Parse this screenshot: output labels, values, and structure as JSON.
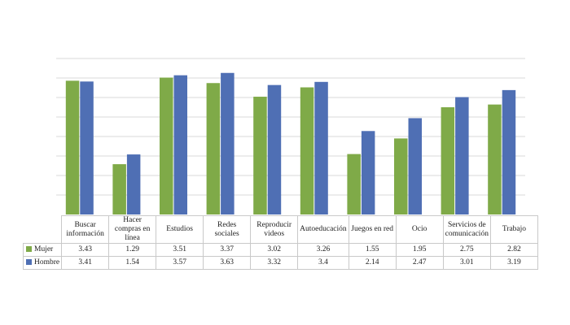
{
  "chart_data": {
    "type": "bar",
    "categories": [
      "Buscar información",
      "Hacer compras en línea",
      "Estudios",
      "Redes sociales",
      "Reproducir videos",
      "Autoeducación",
      "Juegos en red",
      "Ocio",
      "Servicios de comunicación",
      "Trabajo"
    ],
    "series": [
      {
        "name": "Mujer",
        "values": [
          3.43,
          1.29,
          3.51,
          3.37,
          3.02,
          3.26,
          1.55,
          1.95,
          2.75,
          2.82
        ],
        "color": "#7faa48"
      },
      {
        "name": "Hombre",
        "values": [
          3.41,
          1.54,
          3.57,
          3.63,
          3.32,
          3.4,
          2.14,
          2.47,
          3.01,
          3.19
        ],
        "color": "#4f6fb4"
      }
    ],
    "table_values": {
      "Mujer": [
        "3.43",
        "1.29",
        "3.51",
        "3.37",
        "3.02",
        "3.26",
        "1.55",
        "1.95",
        "2.75",
        "2.82"
      ],
      "Hombre": [
        "3.41",
        "1.54",
        "3.57",
        "3.63",
        "3.32",
        "3.4",
        "2.14",
        "2.47",
        "3.01",
        "3.19"
      ]
    },
    "ylim": [
      0,
      4
    ],
    "grid": true,
    "legend": "data-table"
  }
}
